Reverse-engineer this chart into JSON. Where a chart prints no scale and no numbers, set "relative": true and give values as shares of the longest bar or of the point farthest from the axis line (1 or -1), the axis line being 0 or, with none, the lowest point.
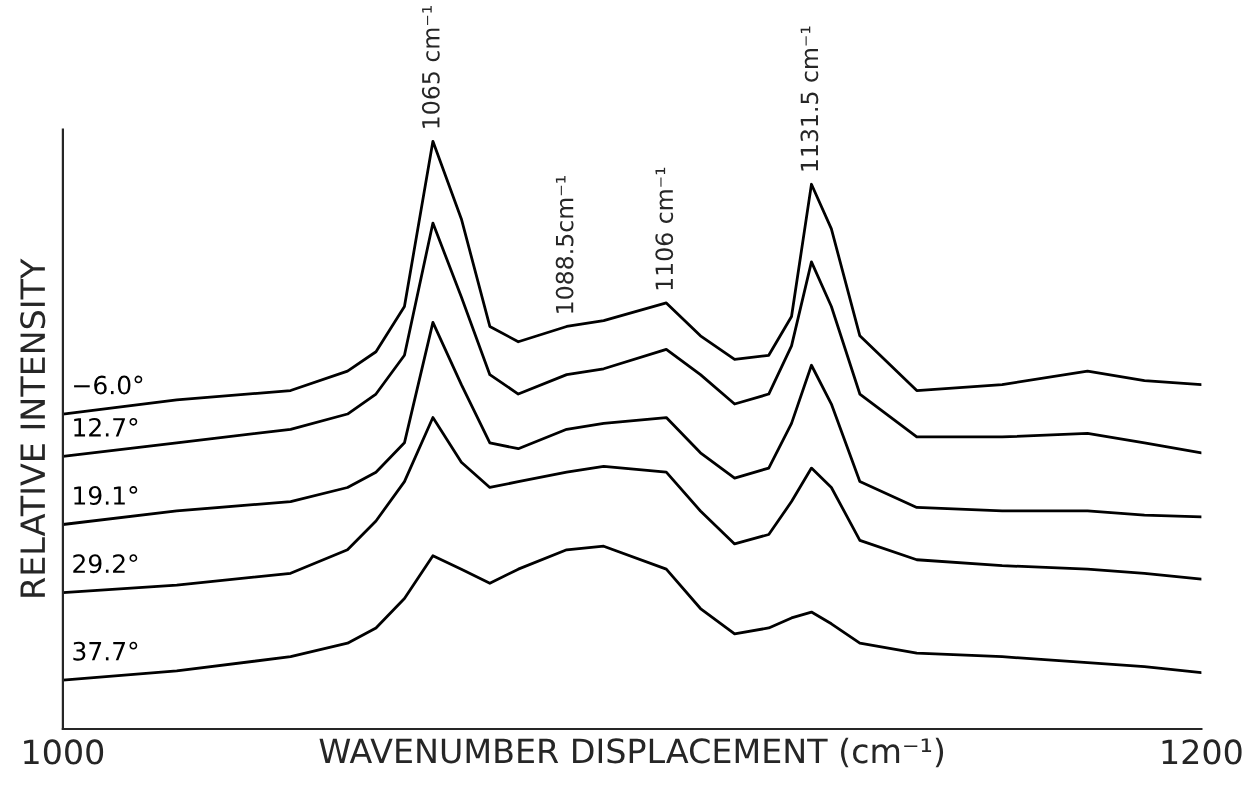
{
  "chart_data": {
    "type": "line",
    "xlabel": "WAVENUMBER DISPLACEMENT (cm⁻¹)",
    "ylabel": "RELATIVE INTENSITY",
    "relative": true,
    "x": [
      1000,
      1020,
      1040,
      1050,
      1055,
      1060,
      1065,
      1070,
      1075,
      1080,
      1088.5,
      1095,
      1106,
      1112,
      1118,
      1124,
      1128,
      1131.5,
      1135,
      1140,
      1150,
      1165,
      1180,
      1190,
      1200
    ],
    "xlim": [
      1000,
      1200
    ],
    "xticks": [
      1000,
      1200
    ],
    "tick_labels": "x",
    "grid": false,
    "legend": false,
    "marker": "none",
    "line_style": "solid",
    "series": [
      {
        "name": "−6.0°",
        "color": "#000000",
        "values": [
          0.536,
          0.56,
          0.576,
          0.609,
          0.642,
          0.719,
          1.0,
          0.868,
          0.685,
          0.659,
          0.685,
          0.695,
          0.725,
          0.669,
          0.629,
          0.636,
          0.702,
          0.927,
          0.851,
          0.669,
          0.576,
          0.586,
          0.609,
          0.593,
          0.586
        ]
      },
      {
        "name": "12.7°",
        "color": "#000000",
        "values": [
          0.464,
          0.487,
          0.51,
          0.536,
          0.57,
          0.636,
          0.861,
          0.735,
          0.603,
          0.57,
          0.603,
          0.613,
          0.646,
          0.603,
          0.553,
          0.57,
          0.652,
          0.795,
          0.719,
          0.57,
          0.497,
          0.497,
          0.503,
          0.487,
          0.47
        ]
      },
      {
        "name": "19.1°",
        "color": "#000000",
        "values": [
          0.348,
          0.371,
          0.387,
          0.411,
          0.437,
          0.487,
          0.692,
          0.586,
          0.487,
          0.477,
          0.51,
          0.52,
          0.53,
          0.47,
          0.427,
          0.444,
          0.52,
          0.619,
          0.553,
          0.421,
          0.377,
          0.371,
          0.371,
          0.364,
          0.361
        ]
      },
      {
        "name": "29.2°",
        "color": "#000000",
        "values": [
          0.232,
          0.245,
          0.265,
          0.305,
          0.354,
          0.421,
          0.53,
          0.454,
          0.411,
          0.421,
          0.437,
          0.447,
          0.437,
          0.371,
          0.315,
          0.331,
          0.387,
          0.444,
          0.411,
          0.321,
          0.288,
          0.278,
          0.272,
          0.265,
          0.255
        ]
      },
      {
        "name": "37.7°",
        "color": "#000000",
        "values": [
          0.083,
          0.099,
          0.123,
          0.146,
          0.172,
          0.222,
          0.295,
          0.272,
          0.248,
          0.272,
          0.305,
          0.311,
          0.272,
          0.205,
          0.162,
          0.172,
          0.189,
          0.199,
          0.179,
          0.146,
          0.129,
          0.123,
          0.113,
          0.106,
          0.096
        ]
      }
    ],
    "annotations": [
      {
        "text": "1065 cm⁻¹",
        "x": 1065,
        "y": 1.0
      },
      {
        "text": "1088.5cm⁻¹",
        "x": 1088.5,
        "y": 0.685
      },
      {
        "text": "1106 cm⁻¹",
        "x": 1106,
        "y": 0.725
      },
      {
        "text": "1131.5 cm⁻¹",
        "x": 1131.5,
        "y": 0.927
      }
    ]
  }
}
